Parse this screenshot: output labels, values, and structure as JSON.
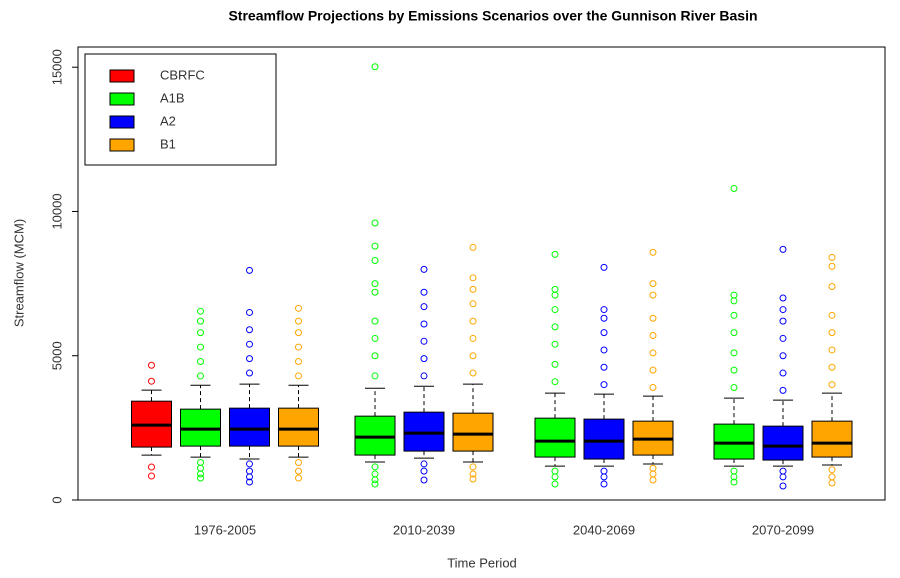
{
  "chart_data": {
    "type": "box",
    "title": "Streamflow Projections by Emissions Scenarios over the Gunnison River Basin",
    "x_label": "Time Period",
    "y_label": "Streamflow (MCM)",
    "categories": [
      "1976-2005",
      "2010-2039",
      "2040-2069",
      "2070-2099"
    ],
    "ylim": [
      0,
      15700
    ],
    "yticks": [
      0,
      5000,
      10000,
      15000
    ],
    "legend_position": "top-left",
    "series": [
      {
        "name": "CBRFC",
        "color": "#ff0000",
        "boxes": [
          {
            "whisker_low": 1555,
            "q1": 1834,
            "median": 2595,
            "q3": 3425,
            "whisker_high": 3806,
            "outliers": [
              4117,
              4671,
              1142,
              830
            ]
          },
          null,
          null,
          null
        ]
      },
      {
        "name": "A1B",
        "color": "#00ff00",
        "boxes": [
          {
            "whisker_low": 1488,
            "q1": 1868,
            "median": 2457,
            "q3": 3149,
            "whisker_high": 3979,
            "outliers": [
              4300,
              4800,
              5300,
              5800,
              6200,
              6540,
              1300,
              1100,
              900,
              761
            ]
          },
          {
            "whisker_low": 1315,
            "q1": 1557,
            "median": 2180,
            "q3": 2906,
            "whisker_high": 3875,
            "outliers": [
              4300,
              5000,
              5600,
              6200,
              7200,
              7500,
              8300,
              8800,
              9600,
              15016,
              1150,
              900,
              700,
              554
            ]
          },
          {
            "whisker_low": 1176,
            "q1": 1488,
            "median": 2041,
            "q3": 2837,
            "whisker_high": 3702,
            "outliers": [
              4100,
              4700,
              5400,
              6000,
              6600,
              7100,
              7300,
              8512,
              1000,
              800,
              554
            ]
          },
          {
            "whisker_low": 1176,
            "q1": 1419,
            "median": 1972,
            "q3": 2630,
            "whisker_high": 3529,
            "outliers": [
              3900,
              4500,
              5100,
              5800,
              6400,
              6900,
              7100,
              10795,
              1000,
              800,
              620
            ]
          }
        ]
      },
      {
        "name": "A2",
        "color": "#0000ff",
        "boxes": [
          {
            "whisker_low": 1419,
            "q1": 1868,
            "median": 2457,
            "q3": 3183,
            "whisker_high": 4014,
            "outliers": [
              4400,
              4900,
              5400,
              5900,
              6500,
              7958,
              1250,
              1000,
              800,
              623
            ]
          },
          {
            "whisker_low": 1453,
            "q1": 1695,
            "median": 2318,
            "q3": 3045,
            "whisker_high": 3944,
            "outliers": [
              4300,
              4900,
              5500,
              6100,
              6700,
              7200,
              7993,
              1250,
              1000,
              692
            ]
          },
          {
            "whisker_low": 1176,
            "q1": 1419,
            "median": 2041,
            "q3": 2803,
            "whisker_high": 3668,
            "outliers": [
              4000,
              4600,
              5200,
              5800,
              6300,
              6600,
              8062,
              1000,
              800,
              554
            ]
          },
          {
            "whisker_low": 1176,
            "q1": 1384,
            "median": 1868,
            "q3": 2560,
            "whisker_high": 3460,
            "outliers": [
              3800,
              4400,
              5000,
              5600,
              6200,
              6600,
              7000,
              8685,
              1000,
              800,
              484
            ]
          }
        ]
      },
      {
        "name": "B1",
        "color": "#ffa500",
        "boxes": [
          {
            "whisker_low": 1488,
            "q1": 1868,
            "median": 2457,
            "q3": 3183,
            "whisker_high": 3979,
            "outliers": [
              4300,
              4800,
              5300,
              5800,
              6200,
              6643,
              1300,
              1000,
              761
            ]
          },
          {
            "whisker_low": 1315,
            "q1": 1695,
            "median": 2284,
            "q3": 3010,
            "whisker_high": 4014,
            "outliers": [
              4400,
              5000,
              5600,
              6200,
              6800,
              7300,
              7700,
              8754,
              1150,
              900,
              727
            ]
          },
          {
            "whisker_low": 1246,
            "q1": 1557,
            "median": 2111,
            "q3": 2733,
            "whisker_high": 3598,
            "outliers": [
              3900,
              4500,
              5100,
              5700,
              6300,
              7100,
              7500,
              8581,
              1100,
              900,
              692
            ]
          },
          {
            "whisker_low": 1211,
            "q1": 1488,
            "median": 1972,
            "q3": 2733,
            "whisker_high": 3702,
            "outliers": [
              4000,
              4600,
              5200,
              5800,
              6400,
              7400,
              8100,
              8408,
              1050,
              800,
              588
            ]
          }
        ]
      }
    ]
  }
}
